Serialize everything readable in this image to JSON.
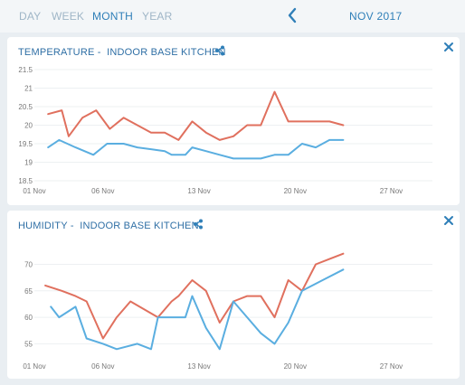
{
  "range_tabs": [
    {
      "label": "DAY",
      "active": false
    },
    {
      "label": "WEEK",
      "active": false
    },
    {
      "label": "MONTH",
      "active": true
    },
    {
      "label": "YEAR",
      "active": false
    }
  ],
  "period_label": "NOV 2017",
  "colors": {
    "accent": "#2f7fb8",
    "series_red": "#e0705e",
    "series_blue": "#5aaee0",
    "grid": "#edf0f2",
    "tick_text": "#777777"
  },
  "icons": {
    "prev": "chevron-left-icon",
    "share": "share-icon",
    "close": "close-icon"
  },
  "cards": [
    {
      "title": "TEMPERATURE -  INDOOR BASE KITCHEN",
      "chart_data": {
        "type": "line",
        "title": "TEMPERATURE -  INDOOR BASE KITCHEN",
        "xlabel": "",
        "ylabel": "",
        "x_tick_labels": [
          "01 Nov",
          "06 Nov",
          "13 Nov",
          "20 Nov",
          "27 Nov"
        ],
        "x_tick_days": [
          1,
          6,
          13,
          20,
          27
        ],
        "xlim": [
          1,
          30
        ],
        "ylim": [
          18.5,
          21.5
        ],
        "y_ticks": [
          18.5,
          19,
          19.5,
          20,
          20.5,
          21,
          21.5
        ],
        "grid": true,
        "series": [
          {
            "color": "#e0705e",
            "x": [
              2,
              3,
              3.5,
              4.5,
              5.5,
              6.5,
              7.5,
              8.5,
              9.5,
              10.5,
              11.5,
              12.5,
              13.5,
              14.5,
              15.5,
              16.5,
              17.5,
              18.5,
              19.5,
              20.5,
              21.5,
              22.5,
              23.5
            ],
            "y": [
              20.3,
              20.4,
              19.7,
              20.2,
              20.4,
              19.9,
              20.2,
              20.0,
              19.8,
              19.8,
              19.6,
              20.1,
              19.8,
              19.6,
              19.7,
              20.0,
              20.0,
              20.9,
              20.1,
              20.1,
              20.1,
              20.1,
              20.0
            ]
          },
          {
            "color": "#5aaee0",
            "x": [
              2,
              2.8,
              4,
              5.3,
              6.3,
              7.5,
              8.5,
              9.5,
              10.5,
              11,
              11.5,
              12,
              12.5,
              13.5,
              14.5,
              15.5,
              16.5,
              17.5,
              18.5,
              19.5,
              20.5,
              21.5,
              22.5,
              23.5
            ],
            "y": [
              19.4,
              19.6,
              19.4,
              19.2,
              19.5,
              19.5,
              19.4,
              19.35,
              19.3,
              19.2,
              19.2,
              19.2,
              19.4,
              19.3,
              19.2,
              19.1,
              19.1,
              19.1,
              19.2,
              19.2,
              19.5,
              19.4,
              19.6,
              19.6
            ]
          }
        ]
      }
    },
    {
      "title": "HUMIDITY -  INDOOR BASE KITCHEN",
      "chart_data": {
        "type": "line",
        "title": "HUMIDITY -  INDOOR BASE KITCHEN",
        "xlabel": "",
        "ylabel": "",
        "x_tick_labels": [
          "01 Nov",
          "06 Nov",
          "13 Nov",
          "20 Nov",
          "27 Nov"
        ],
        "x_tick_days": [
          1,
          6,
          13,
          20,
          27
        ],
        "xlim": [
          1,
          30
        ],
        "ylim": [
          52,
          74
        ],
        "y_ticks": [
          55,
          60,
          65,
          70
        ],
        "grid": true,
        "series": [
          {
            "color": "#e0705e",
            "x": [
              1.8,
              3,
              4,
              4.8,
              6,
              7,
              8,
              10,
              11,
              11.5,
              12.5,
              13.5,
              14.5,
              15.5,
              16.5,
              17.5,
              18.5,
              19.5,
              20.5,
              21.5,
              22.5,
              23.5
            ],
            "y": [
              66,
              65,
              64,
              63,
              56,
              60,
              63,
              60,
              63,
              64,
              67,
              65,
              59,
              63,
              64,
              64,
              60,
              67,
              65,
              70,
              71,
              72
            ]
          },
          {
            "color": "#5aaee0",
            "x": [
              2.2,
              2.8,
              4,
              4.8,
              6,
              7,
              8.5,
              9.5,
              10,
              11,
              12,
              12.5,
              13.5,
              14.5,
              15.5,
              16.5,
              17.5,
              18.5,
              19.5,
              20.5,
              22,
              23.5
            ],
            "y": [
              62,
              60,
              62,
              56,
              55,
              54,
              55,
              54,
              60,
              60,
              60,
              64,
              58,
              54,
              63,
              60,
              57,
              55,
              59,
              65,
              67,
              69
            ]
          }
        ]
      }
    }
  ]
}
